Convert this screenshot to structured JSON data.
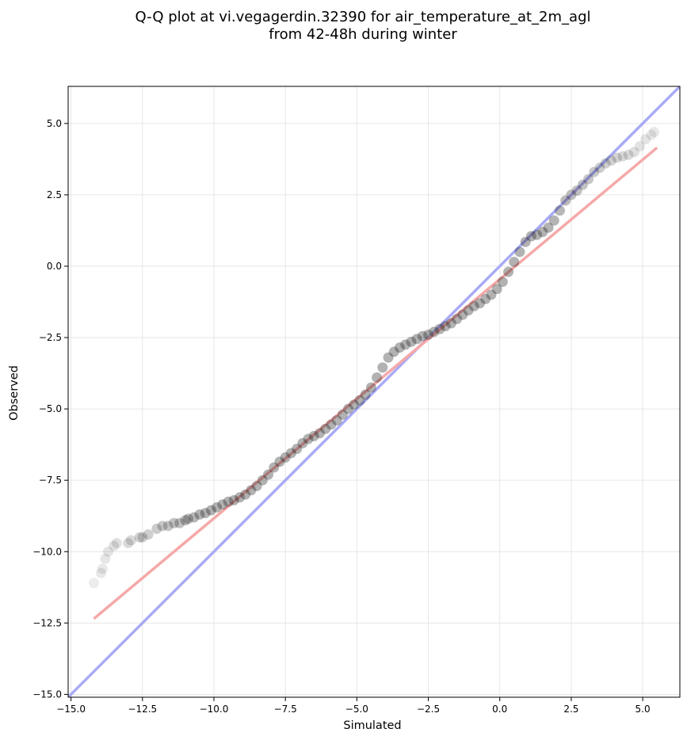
{
  "chart_data": {
    "type": "scatter",
    "title_line1": "Q-Q plot at vi.vegagerdin.32390 for air_temperature_at_2m_agl",
    "title_line2": "from 42-48h during winter",
    "xlabel": "Simulated",
    "ylabel": "Observed",
    "xlim": [
      -15.1,
      6.3
    ],
    "ylim": [
      -15.1,
      6.3
    ],
    "grid": true,
    "x_ticks": [
      -15.0,
      -12.5,
      -10.0,
      -7.5,
      -5.0,
      -2.5,
      0.0,
      2.5,
      5.0
    ],
    "y_ticks": [
      -15.0,
      -12.5,
      -10.0,
      -7.5,
      -5.0,
      -2.5,
      0.0,
      2.5,
      5.0
    ],
    "x_tick_labels": [
      "−15.0",
      "−12.5",
      "−10.0",
      "−7.5",
      "−5.0",
      "−2.5",
      "0.0",
      "2.5",
      "5.0"
    ],
    "y_tick_labels": [
      "−15.0",
      "−12.5",
      "−10.0",
      "−7.5",
      "−5.0",
      "−2.5",
      "0.0",
      "2.5",
      "5.0"
    ],
    "identity_line": {
      "color": "#aaaaf5",
      "x": [
        -15.1,
        6.3
      ],
      "y": [
        -15.1,
        6.3
      ]
    },
    "fit_line": {
      "color": "#f5a8a8",
      "x": [
        -14.2,
        5.5
      ],
      "y": [
        -12.35,
        4.15
      ]
    },
    "marker_color": "#222222",
    "points": [
      [
        -14.2,
        -11.1
      ],
      [
        -13.95,
        -10.75
      ],
      [
        -13.9,
        -10.6
      ],
      [
        -13.8,
        -10.25
      ],
      [
        -13.7,
        -10.0
      ],
      [
        -13.5,
        -9.8
      ],
      [
        -13.4,
        -9.7
      ],
      [
        -13.0,
        -9.7
      ],
      [
        -12.9,
        -9.6
      ],
      [
        -12.6,
        -9.5
      ],
      [
        -12.5,
        -9.5
      ],
      [
        -12.3,
        -9.4
      ],
      [
        -12.0,
        -9.2
      ],
      [
        -11.8,
        -9.1
      ],
      [
        -11.6,
        -9.1
      ],
      [
        -11.4,
        -9.0
      ],
      [
        -11.2,
        -9.0
      ],
      [
        -11.0,
        -8.9
      ],
      [
        -10.9,
        -8.85
      ],
      [
        -10.7,
        -8.8
      ],
      [
        -10.5,
        -8.7
      ],
      [
        -10.3,
        -8.65
      ],
      [
        -10.1,
        -8.55
      ],
      [
        -9.9,
        -8.45
      ],
      [
        -9.7,
        -8.35
      ],
      [
        -9.5,
        -8.25
      ],
      [
        -9.3,
        -8.2
      ],
      [
        -9.1,
        -8.1
      ],
      [
        -8.9,
        -8.0
      ],
      [
        -8.7,
        -7.85
      ],
      [
        -8.5,
        -7.7
      ],
      [
        -8.3,
        -7.5
      ],
      [
        -8.1,
        -7.3
      ],
      [
        -7.9,
        -7.05
      ],
      [
        -7.7,
        -6.85
      ],
      [
        -7.5,
        -6.7
      ],
      [
        -7.3,
        -6.55
      ],
      [
        -7.1,
        -6.4
      ],
      [
        -6.9,
        -6.2
      ],
      [
        -6.7,
        -6.05
      ],
      [
        -6.5,
        -5.95
      ],
      [
        -6.3,
        -5.85
      ],
      [
        -6.1,
        -5.7
      ],
      [
        -5.9,
        -5.55
      ],
      [
        -5.7,
        -5.4
      ],
      [
        -5.5,
        -5.2
      ],
      [
        -5.3,
        -5.0
      ],
      [
        -5.1,
        -4.85
      ],
      [
        -4.9,
        -4.7
      ],
      [
        -4.7,
        -4.5
      ],
      [
        -4.5,
        -4.25
      ],
      [
        -4.3,
        -3.9
      ],
      [
        -4.1,
        -3.55
      ],
      [
        -3.9,
        -3.2
      ],
      [
        -3.7,
        -3.0
      ],
      [
        -3.5,
        -2.85
      ],
      [
        -3.3,
        -2.75
      ],
      [
        -3.1,
        -2.65
      ],
      [
        -2.9,
        -2.55
      ],
      [
        -2.7,
        -2.45
      ],
      [
        -2.5,
        -2.4
      ],
      [
        -2.3,
        -2.3
      ],
      [
        -2.1,
        -2.2
      ],
      [
        -1.9,
        -2.1
      ],
      [
        -1.7,
        -2.0
      ],
      [
        -1.5,
        -1.85
      ],
      [
        -1.3,
        -1.7
      ],
      [
        -1.1,
        -1.55
      ],
      [
        -0.9,
        -1.4
      ],
      [
        -0.7,
        -1.3
      ],
      [
        -0.5,
        -1.15
      ],
      [
        -0.3,
        -1.0
      ],
      [
        -0.1,
        -0.8
      ],
      [
        0.1,
        -0.55
      ],
      [
        0.3,
        -0.2
      ],
      [
        0.5,
        0.15
      ],
      [
        0.7,
        0.5
      ],
      [
        0.9,
        0.85
      ],
      [
        1.1,
        1.05
      ],
      [
        1.3,
        1.1
      ],
      [
        1.5,
        1.2
      ],
      [
        1.7,
        1.35
      ],
      [
        1.9,
        1.6
      ],
      [
        2.1,
        1.95
      ],
      [
        2.3,
        2.3
      ],
      [
        2.5,
        2.5
      ],
      [
        2.7,
        2.65
      ],
      [
        2.9,
        2.85
      ],
      [
        3.1,
        3.05
      ],
      [
        3.3,
        3.3
      ],
      [
        3.5,
        3.45
      ],
      [
        3.7,
        3.6
      ],
      [
        3.9,
        3.7
      ],
      [
        4.1,
        3.8
      ],
      [
        4.3,
        3.85
      ],
      [
        4.5,
        3.9
      ],
      [
        4.7,
        4.0
      ],
      [
        4.9,
        4.2
      ],
      [
        5.1,
        4.45
      ],
      [
        5.3,
        4.6
      ],
      [
        5.4,
        4.7
      ]
    ]
  }
}
